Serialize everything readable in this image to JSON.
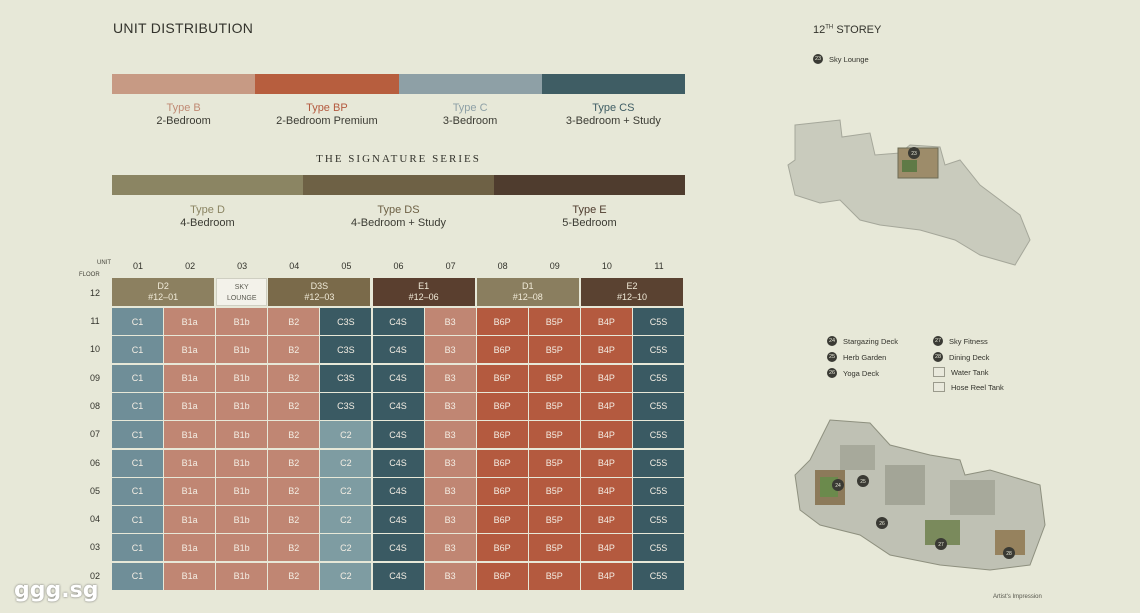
{
  "title": "UNIT DISTRIBUTION",
  "colors": {
    "typeB": "#c79a84",
    "typeBP": "#b75e3e",
    "typeC": "#8ea0a6",
    "typeCS": "#3f5d64",
    "typeD": "#8b8563",
    "typeDS": "#6e6145",
    "typeE": "#4f3c2e",
    "b_cell": "#c08673",
    "bp_cell": "#b45a3f",
    "c1_cell": "#6f8e98",
    "c2_cell": "#7e9ca2",
    "cs_cell": "#3a5a63",
    "d2": "#8c8060",
    "d3s": "#7a6a4a",
    "e1": "#5a3f2f",
    "d1": "#8a7e5f",
    "e2": "#5a4231"
  },
  "types_row1": [
    {
      "type": "Type B",
      "desc": "2-Bedroom"
    },
    {
      "type": "Type BP",
      "desc": "2-Bedroom Premium"
    },
    {
      "type": "Type C",
      "desc": "3-Bedroom"
    },
    {
      "type": "Type CS",
      "desc": "3-Bedroom + Study"
    }
  ],
  "signature_series": "THE SIGNATURE SERIES",
  "types_row2": [
    {
      "type": "Type D",
      "desc": "4-Bedroom"
    },
    {
      "type": "Type DS",
      "desc": "4-Bedroom + Study"
    },
    {
      "type": "Type E",
      "desc": "5-Bedroom"
    }
  ],
  "unit_label": "UNIT",
  "floor_label": "FLOOR",
  "columns": [
    "01",
    "02",
    "03",
    "04",
    "05",
    "06",
    "07",
    "08",
    "09",
    "10",
    "11"
  ],
  "floor12": {
    "floor": "12",
    "blocks": [
      {
        "line1": "D2",
        "line2": "#12–01"
      },
      {
        "line1": "SKY",
        "line2": "LOUNGE"
      },
      {
        "line1": "D3S",
        "line2": "#12–03"
      },
      {
        "line1": "E1",
        "line2": "#12–06"
      },
      {
        "line1": "D1",
        "line2": "#12–08"
      },
      {
        "line1": "E2",
        "line2": "#12–10"
      }
    ]
  },
  "floors": [
    {
      "floor": "11",
      "units": [
        "C1",
        "B1a",
        "B1b",
        "B2",
        "C3S",
        "C4S",
        "B3",
        "B6P",
        "B5P",
        "B4P",
        "C5S"
      ]
    },
    {
      "floor": "10",
      "units": [
        "C1",
        "B1a",
        "B1b",
        "B2",
        "C3S",
        "C4S",
        "B3",
        "B6P",
        "B5P",
        "B4P",
        "C5S"
      ]
    },
    {
      "floor": "09",
      "units": [
        "C1",
        "B1a",
        "B1b",
        "B2",
        "C3S",
        "C4S",
        "B3",
        "B6P",
        "B5P",
        "B4P",
        "C5S"
      ]
    },
    {
      "floor": "08",
      "units": [
        "C1",
        "B1a",
        "B1b",
        "B2",
        "C3S",
        "C4S",
        "B3",
        "B6P",
        "B5P",
        "B4P",
        "C5S"
      ]
    },
    {
      "floor": "07",
      "units": [
        "C1",
        "B1a",
        "B1b",
        "B2",
        "C2",
        "C4S",
        "B3",
        "B6P",
        "B5P",
        "B4P",
        "C5S"
      ]
    },
    {
      "floor": "06",
      "units": [
        "C1",
        "B1a",
        "B1b",
        "B2",
        "C2",
        "C4S",
        "B3",
        "B6P",
        "B5P",
        "B4P",
        "C5S"
      ]
    },
    {
      "floor": "05",
      "units": [
        "C1",
        "B1a",
        "B1b",
        "B2",
        "C2",
        "C4S",
        "B3",
        "B6P",
        "B5P",
        "B4P",
        "C5S"
      ]
    },
    {
      "floor": "04",
      "units": [
        "C1",
        "B1a",
        "B1b",
        "B2",
        "C2",
        "C4S",
        "B3",
        "B6P",
        "B5P",
        "B4P",
        "C5S"
      ]
    },
    {
      "floor": "03",
      "units": [
        "C1",
        "B1a",
        "B1b",
        "B2",
        "C2",
        "C4S",
        "B3",
        "B6P",
        "B5P",
        "B4P",
        "C5S"
      ]
    },
    {
      "floor": "02",
      "units": [
        "C1",
        "B1a",
        "B1b",
        "B2",
        "C2",
        "C4S",
        "B3",
        "B6P",
        "B5P",
        "B4P",
        "C5S"
      ]
    }
  ],
  "storey": {
    "num": "12",
    "sup": "TH",
    "word": "STOREY"
  },
  "sky_lounge_key": {
    "num": "23",
    "label": "Sky Lounge"
  },
  "facility_keys": [
    {
      "num": "24",
      "label": "Stargazing Deck"
    },
    {
      "num": "25",
      "label": "Herb Garden"
    },
    {
      "num": "26",
      "label": "Yoga Deck"
    },
    {
      "num": "27",
      "label": "Sky Fitness"
    },
    {
      "num": "28",
      "label": "Dining Deck"
    }
  ],
  "legend_boxes": [
    "Water Tank",
    "Hose Reel Tank"
  ],
  "artist": "Artist's Impression",
  "watermark": "ggg.sg"
}
